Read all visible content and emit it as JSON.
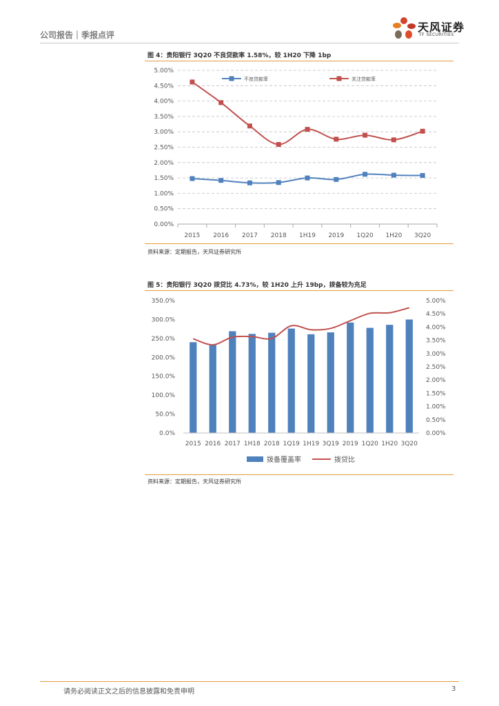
{
  "header": {
    "label": "公司报告｜季报点评"
  },
  "logo": {
    "cn": "天风证券",
    "en": "TF SECURITIES"
  },
  "figures": [
    {
      "title": "图 4：贵阳银行 3Q20 不良贷款率 1.58%，较 1H20 下降 1bp",
      "source": "资料来源：定期报告，天风证券研究所"
    },
    {
      "title": "图 5：贵阳银行 3Q20 拨贷比 4.73%，较 1H20 上升 19bp，拨备较为充足",
      "source": "资料来源：定期报告，天风证券研究所"
    }
  ],
  "footer": {
    "text": "请务必阅读正文之后的信息披露和免责申明",
    "page": "3"
  },
  "colors": {
    "blue": "#4f81bd",
    "red": "#c0504d",
    "accent": "#e39a3a"
  },
  "chart_data": [
    {
      "type": "line",
      "categories": [
        "2015",
        "2016",
        "2017",
        "2018",
        "1H19",
        "2019",
        "1Q20",
        "1H20",
        "3Q20"
      ],
      "series": [
        {
          "name": "不良贷款率",
          "values": [
            1.48,
            1.42,
            1.34,
            1.35,
            1.5,
            1.45,
            1.62,
            1.59,
            1.58
          ]
        },
        {
          "name": "关注贷款率",
          "values": [
            4.62,
            3.95,
            3.19,
            2.59,
            3.08,
            2.76,
            2.89,
            2.74,
            3.02
          ]
        }
      ],
      "ylim": [
        0,
        5
      ],
      "yticks": [
        "0.00%",
        "0.50%",
        "1.00%",
        "1.50%",
        "2.00%",
        "2.50%",
        "3.00%",
        "3.50%",
        "4.00%",
        "4.50%",
        "5.00%"
      ],
      "grid": true,
      "legend": "top"
    },
    {
      "type": "bar",
      "categories": [
        "2015",
        "2016",
        "2017",
        "1H18",
        "2018",
        "1Q19",
        "1H19",
        "3Q19",
        "2019",
        "1Q20",
        "1H20",
        "3Q20"
      ],
      "series": [
        {
          "name": "拨备覆盖率",
          "type": "bar",
          "axis": "left",
          "values": [
            240,
            233,
            269,
            262,
            265,
            276,
            261,
            266,
            292,
            278,
            286,
            300
          ]
        },
        {
          "name": "拨贷比",
          "type": "line",
          "axis": "right",
          "values": [
            3.56,
            3.33,
            3.62,
            3.64,
            3.57,
            4.05,
            3.9,
            3.95,
            4.24,
            4.52,
            4.54,
            4.73
          ]
        }
      ],
      "ylim_left": [
        0,
        350
      ],
      "ylim_right": [
        0,
        5
      ],
      "yticks_left": [
        "0.0%",
        "50.0%",
        "100.0%",
        "150.0%",
        "200.0%",
        "250.0%",
        "300.0%",
        "350.0%"
      ],
      "yticks_right": [
        "0.00%",
        "0.50%",
        "1.00%",
        "1.50%",
        "2.00%",
        "2.50%",
        "3.00%",
        "3.50%",
        "4.00%",
        "4.50%",
        "5.00%"
      ],
      "grid": false,
      "legend": "bottom"
    }
  ]
}
